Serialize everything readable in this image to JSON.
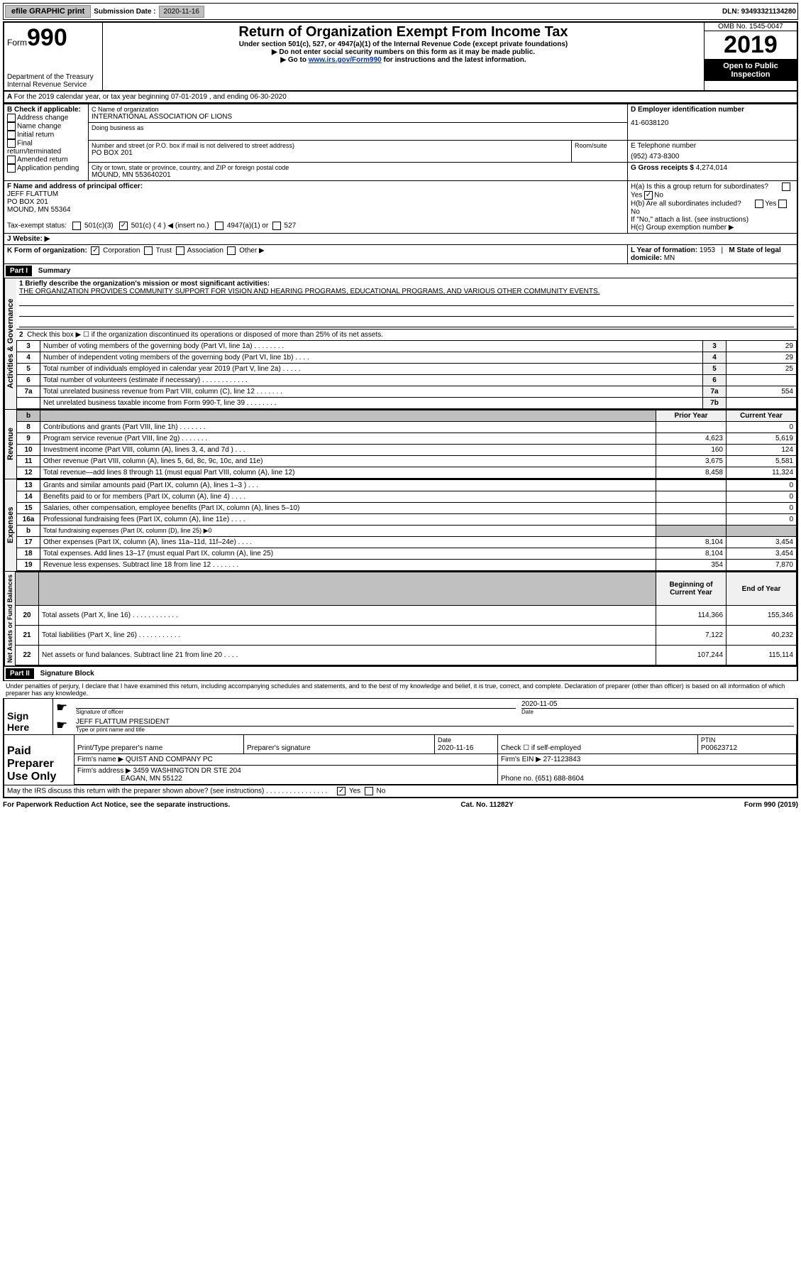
{
  "topbar": {
    "efile": "efile GRAPHIC print",
    "subdate_label": "Submission Date :",
    "subdate": "2020-11-16",
    "dln": "DLN: 93493321134280"
  },
  "header": {
    "form_prefix": "Form",
    "form_num": "990",
    "dept": "Department of the Treasury\nInternal Revenue Service",
    "title": "Return of Organization Exempt From Income Tax",
    "sub1": "Under section 501(c), 527, or 4947(a)(1) of the Internal Revenue Code (except private foundations)",
    "sub2": "▶ Do not enter social security numbers on this form as it may be made public.",
    "sub3_pre": "▶ Go to ",
    "sub3_link": "www.irs.gov/Form990",
    "sub3_post": " for instructions and the latest information.",
    "omb": "OMB No. 1545-0047",
    "year": "2019",
    "open": "Open to Public Inspection"
  },
  "a_line": "For the 2019 calendar year, or tax year beginning 07-01-2019   , and ending 06-30-2020",
  "section_b": {
    "label": "B Check if applicable:",
    "opts": [
      "Address change",
      "Name change",
      "Initial return",
      "Final return/terminated",
      "Amended return",
      "Application pending"
    ]
  },
  "section_c": {
    "name_label": "C Name of organization",
    "name": "INTERNATIONAL ASSOCIATION OF LIONS",
    "dba_label": "Doing business as",
    "addr_label": "Number and street (or P.O. box if mail is not delivered to street address)",
    "room_label": "Room/suite",
    "addr": "PO BOX 201",
    "city_label": "City or town, state or province, country, and ZIP or foreign postal code",
    "city": "MOUND, MN  553640201"
  },
  "section_d": {
    "label": "D Employer identification number",
    "val": "41-6038120"
  },
  "section_e": {
    "label": "E Telephone number",
    "val": "(952) 473-8300"
  },
  "section_g": {
    "label": "G Gross receipts $",
    "val": "4,274,014"
  },
  "section_f": {
    "label": "F  Name and address of principal officer:",
    "name": "JEFF FLATTUM",
    "addr1": "PO BOX 201",
    "addr2": "MOUND, MN  55364"
  },
  "section_h": {
    "ha": "H(a)  Is this a group return for subordinates?",
    "hb": "H(b)  Are all subordinates included?",
    "hb_note": "If \"No,\" attach a list. (see instructions)",
    "hc": "H(c)  Group exemption number ▶",
    "yes": "Yes",
    "no": "No"
  },
  "tax_exempt": {
    "label": "Tax-exempt status:",
    "o1": "501(c)(3)",
    "o2": "501(c) ( 4 ) ◀ (insert no.)",
    "o3": "4947(a)(1) or",
    "o4": "527"
  },
  "section_j": {
    "label": "J   Website: ▶"
  },
  "section_k": {
    "label": "K Form of organization:",
    "opts": [
      "Corporation",
      "Trust",
      "Association",
      "Other ▶"
    ]
  },
  "section_l": {
    "label": "L Year of formation:",
    "val": "1953"
  },
  "section_m": {
    "label": "M State of legal domicile:",
    "val": "MN"
  },
  "part1": {
    "header": "Part I",
    "title": "Summary",
    "mission_label": "1  Briefly describe the organization's mission or most significant activities:",
    "mission": "THE ORGANIZATION PROVIDES COMMUNITY SUPPORT FOR VISION AND HEARING PROGRAMS, EDUCATIONAL PROGRAMS, AND VARIOUS OTHER COMMUNITY EVENTS.",
    "line2": "Check this box ▶ ☐  if the organization discontinued its operations or disposed of more than 25% of its net assets.",
    "vlabels": {
      "gov": "Activities & Governance",
      "rev": "Revenue",
      "exp": "Expenses",
      "net": "Net Assets or Fund Balances"
    },
    "col_prior": "Prior Year",
    "col_current": "Current Year",
    "col_begin": "Beginning of Current Year",
    "col_end": "End of Year",
    "rows_gov": [
      {
        "n": "3",
        "t": "Number of voting members of the governing body (Part VI, line 1a)  .   .   .   .   .   .   .   .",
        "b": "3",
        "v": "29"
      },
      {
        "n": "4",
        "t": "Number of independent voting members of the governing body (Part VI, line 1b)  .   .   .   .",
        "b": "4",
        "v": "29"
      },
      {
        "n": "5",
        "t": "Total number of individuals employed in calendar year 2019 (Part V, line 2a)  .   .   .   .   .",
        "b": "5",
        "v": "25"
      },
      {
        "n": "6",
        "t": "Total number of volunteers (estimate if necessary)   .   .   .   .   .   .   .   .   .   .   .   .",
        "b": "6",
        "v": ""
      },
      {
        "n": "7a",
        "t": "Total unrelated business revenue from Part VIII, column (C), line 12  .   .   .   .   .   .   .",
        "b": "7a",
        "v": "554"
      },
      {
        "n": "",
        "t": "Net unrelated business taxable income from Form 990-T, line 39   .   .   .   .   .   .   .   .",
        "b": "7b",
        "v": ""
      }
    ],
    "rows_rev": [
      {
        "n": "8",
        "t": "Contributions and grants (Part VIII, line 1h)   .   .   .   .   .   .   .",
        "p": "",
        "c": "0"
      },
      {
        "n": "9",
        "t": "Program service revenue (Part VIII, line 2g)  .   .   .   .   .   .   .",
        "p": "4,623",
        "c": "5,619"
      },
      {
        "n": "10",
        "t": "Investment income (Part VIII, column (A), lines 3, 4, and 7d )  .   .   .",
        "p": "160",
        "c": "124"
      },
      {
        "n": "11",
        "t": "Other revenue (Part VIII, column (A), lines 5, 6d, 8c, 9c, 10c, and 11e)",
        "p": "3,675",
        "c": "5,581"
      },
      {
        "n": "12",
        "t": "Total revenue—add lines 8 through 11 (must equal Part VIII, column (A), line 12)",
        "p": "8,458",
        "c": "11,324"
      }
    ],
    "rows_exp": [
      {
        "n": "13",
        "t": "Grants and similar amounts paid (Part IX, column (A), lines 1–3 )  .   .   .",
        "p": "",
        "c": "0"
      },
      {
        "n": "14",
        "t": "Benefits paid to or for members (Part IX, column (A), line 4)  .   .   .   .",
        "p": "",
        "c": "0"
      },
      {
        "n": "15",
        "t": "Salaries, other compensation, employee benefits (Part IX, column (A), lines 5–10)",
        "p": "",
        "c": "0"
      },
      {
        "n": "16a",
        "t": "Professional fundraising fees (Part IX, column (A), line 11e)  .   .   .   .",
        "p": "",
        "c": "0"
      },
      {
        "n": "b",
        "t": "Total fundraising expenses (Part IX, column (D), line 25) ▶0",
        "p": "GREY",
        "c": "GREY"
      },
      {
        "n": "17",
        "t": "Other expenses (Part IX, column (A), lines 11a–11d, 11f–24e)  .   .   .   .",
        "p": "8,104",
        "c": "3,454"
      },
      {
        "n": "18",
        "t": "Total expenses. Add lines 13–17 (must equal Part IX, column (A), line 25)",
        "p": "8,104",
        "c": "3,454"
      },
      {
        "n": "19",
        "t": "Revenue less expenses. Subtract line 18 from line 12  .   .   .   .   .   .   .",
        "p": "354",
        "c": "7,870"
      }
    ],
    "rows_net": [
      {
        "n": "20",
        "t": "Total assets (Part X, line 16)  .   .   .   .   .   .   .   .   .   .   .   .",
        "p": "114,366",
        "c": "155,346"
      },
      {
        "n": "21",
        "t": "Total liabilities (Part X, line 26)  .   .   .   .   .   .   .   .   .   .   .",
        "p": "7,122",
        "c": "40,232"
      },
      {
        "n": "22",
        "t": "Net assets or fund balances. Subtract line 21 from line 20  .   .   .   .",
        "p": "107,244",
        "c": "115,114"
      }
    ]
  },
  "part2": {
    "header": "Part II",
    "title": "Signature Block",
    "decl": "Under penalties of perjury, I declare that I have examined this return, including accompanying schedules and statements, and to the best of my knowledge and belief, it is true, correct, and complete. Declaration of preparer (other than officer) is based on all information of which preparer has any knowledge.",
    "sign_here": "Sign Here",
    "sig_officer": "Signature of officer",
    "sig_date": "2020-11-05",
    "date_label": "Date",
    "name_title": "JEFF FLATTUM PRESIDENT",
    "name_title_label": "Type or print name and title",
    "paid": "Paid Preparer Use Only",
    "prep_name_label": "Print/Type preparer's name",
    "prep_sig_label": "Preparer's signature",
    "prep_date_label": "Date",
    "prep_date": "2020-11-16",
    "check_self": "Check ☐  if self-employed",
    "ptin_label": "PTIN",
    "ptin": "P00623712",
    "firm_name_label": "Firm's name    ▶",
    "firm_name": "QUIST AND COMPANY PC",
    "firm_ein_label": "Firm's EIN ▶",
    "firm_ein": "27-1123843",
    "firm_addr_label": "Firm's address ▶",
    "firm_addr1": "3459 WASHINGTON DR STE 204",
    "firm_addr2": "EAGAN, MN  55122",
    "phone_label": "Phone no.",
    "phone": "(651) 688-8604",
    "discuss": "May the IRS discuss this return with the preparer shown above? (see instructions)  .   .   .   .   .   .   .   .   .   .   .   .   .   .   .   ."
  },
  "footer": {
    "left": "For Paperwork Reduction Act Notice, see the separate instructions.",
    "mid": "Cat. No. 11282Y",
    "right": "Form 990 (2019)"
  }
}
